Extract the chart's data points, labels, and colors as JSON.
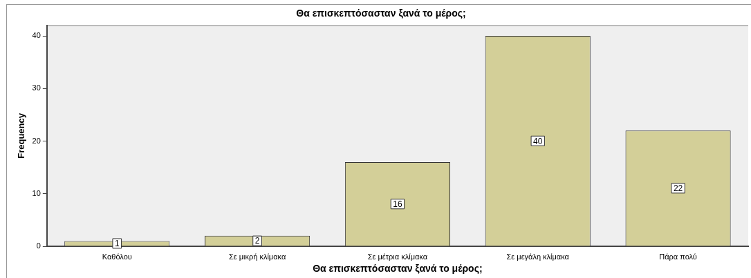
{
  "chart_data": {
    "type": "bar",
    "title": "Θα επισκεπτόσασταν ξανά το μέρος;",
    "xlabel": "Θα επισκεπτόσασταν ξανά το μέρος;",
    "ylabel": "Frequency",
    "categories": [
      "Καθόλου",
      "Σε μικρή κλίμακα",
      "Σε μέτρια κλίμακα",
      "Σε μεγάλη κλίμακα",
      "Πάρα πολύ"
    ],
    "values": [
      1,
      2,
      16,
      40,
      22
    ],
    "color": "#d3cf98",
    "ylim": [
      0,
      42
    ],
    "yticks": [
      0,
      10,
      20,
      30,
      40
    ],
    "grid": false,
    "legend": false,
    "data_labels": true
  }
}
